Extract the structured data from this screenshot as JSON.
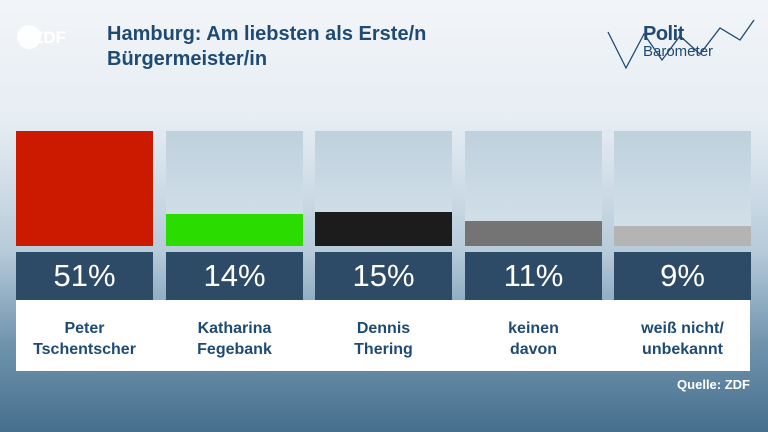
{
  "header": {
    "logo": "ZDF",
    "title_line1": "Hamburg: Am liebsten als Erste/n",
    "title_line2": "Bürgermeister/in",
    "brand_line1": "Polit",
    "brand_line2": "Barometer"
  },
  "chart_data": {
    "type": "bar",
    "title": "Hamburg: Am liebsten als Erste/n Bürgermeister/in",
    "ylim": [
      0,
      51
    ],
    "categories": [
      [
        "Peter",
        "Tschentscher"
      ],
      [
        "Katharina",
        "Fegebank"
      ],
      [
        "Dennis",
        "Thering"
      ],
      [
        "keinen",
        "davon"
      ],
      [
        "weiß nicht/",
        "unbekannt"
      ]
    ],
    "values": [
      51,
      14,
      15,
      11,
      9
    ],
    "value_labels": [
      "51%",
      "14%",
      "15%",
      "11%",
      "9%"
    ],
    "colors": [
      "#cc1a00",
      "#2bdc00",
      "#1c1c1c",
      "#747474",
      "#b4b4b4"
    ]
  },
  "footer": {
    "source": "Quelle: ZDF"
  }
}
